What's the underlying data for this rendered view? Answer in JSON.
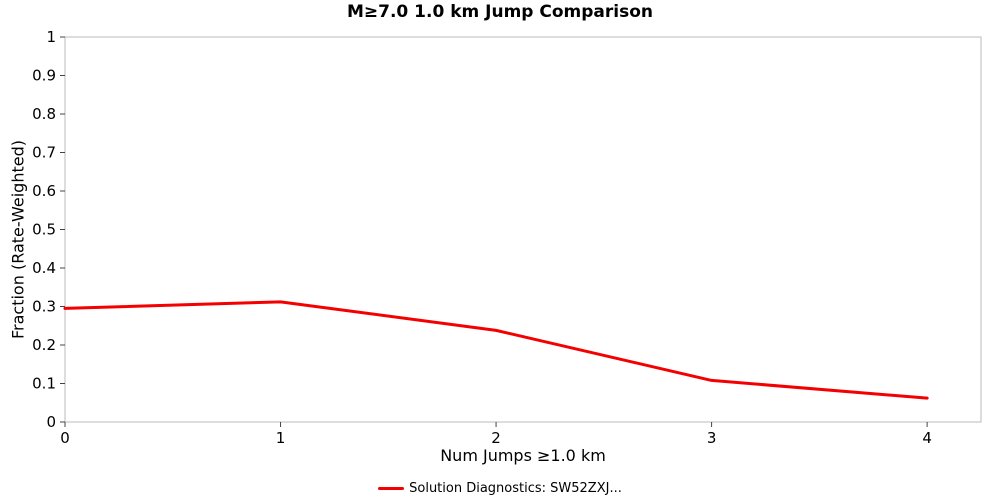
{
  "title": "M≥7.0 1.0 km Jump Comparison",
  "legend": {
    "label": "Solution Diagnostics: SW52ZXJ..."
  },
  "chart_data": {
    "type": "line",
    "title": "M≥7.0 1.0 km Jump Comparison",
    "xlabel": "Num Jumps ≥1.0 km",
    "ylabel": "Fraction (Rate-Weighted)",
    "xlim": [
      0,
      4.25
    ],
    "ylim": [
      0,
      1
    ],
    "x_ticks": [
      "0",
      "1",
      "2",
      "3",
      "4"
    ],
    "y_ticks": [
      "0",
      "0.1",
      "0.2",
      "0.3",
      "0.4",
      "0.5",
      "0.6",
      "0.7",
      "0.8",
      "0.9",
      "1"
    ],
    "grid": false,
    "legend_position": "bottom",
    "plot_border_color": "#bbbbbb",
    "tick_color": "#444444",
    "series": [
      {
        "name": "Solution Diagnostics: SW52ZXJ...",
        "color": "#f40000",
        "x": [
          0,
          1,
          2,
          3,
          4
        ],
        "y": [
          0.295,
          0.312,
          0.238,
          0.108,
          0.062
        ]
      }
    ]
  }
}
